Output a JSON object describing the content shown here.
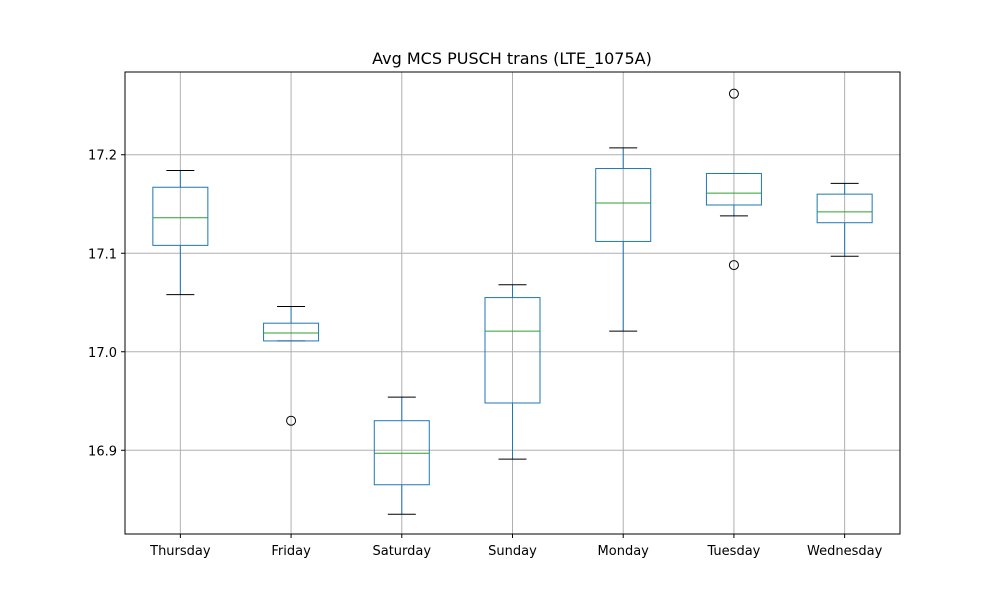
{
  "chart_data": {
    "type": "box",
    "title": "Avg MCS PUSCH trans (LTE_1075A)",
    "xlabel": "",
    "ylabel": "",
    "categories": [
      "Thursday",
      "Friday",
      "Saturday",
      "Sunday",
      "Monday",
      "Tuesday",
      "Wednesday"
    ],
    "ylim": [
      16.815,
      17.284
    ],
    "yticks": [
      16.9,
      17.0,
      17.1,
      17.2
    ],
    "ytick_labels": [
      "16.9",
      "17.0",
      "17.1",
      "17.2"
    ],
    "grid": true,
    "boxes": [
      {
        "category": "Thursday",
        "whisker_low": 17.058,
        "q1": 17.108,
        "median": 17.136,
        "q3": 17.167,
        "whisker_high": 17.184,
        "outliers": []
      },
      {
        "category": "Friday",
        "whisker_low": 17.011,
        "q1": 17.011,
        "median": 17.019,
        "q3": 17.029,
        "whisker_high": 17.046,
        "outliers": [
          16.93
        ]
      },
      {
        "category": "Saturday",
        "whisker_low": 16.835,
        "q1": 16.865,
        "median": 16.897,
        "q3": 16.93,
        "whisker_high": 16.954,
        "outliers": []
      },
      {
        "category": "Sunday",
        "whisker_low": 16.891,
        "q1": 16.948,
        "median": 17.021,
        "q3": 17.055,
        "whisker_high": 17.068,
        "outliers": []
      },
      {
        "category": "Monday",
        "whisker_low": 17.021,
        "q1": 17.112,
        "median": 17.151,
        "q3": 17.186,
        "whisker_high": 17.207,
        "outliers": []
      },
      {
        "category": "Tuesday",
        "whisker_low": 17.138,
        "q1": 17.149,
        "median": 17.161,
        "q3": 17.181,
        "whisker_high": 17.181,
        "outliers": [
          17.088,
          17.262
        ]
      },
      {
        "category": "Wednesday",
        "whisker_low": 17.097,
        "q1": 17.131,
        "median": 17.142,
        "q3": 17.16,
        "whisker_high": 17.171,
        "outliers": []
      }
    ],
    "colors": {
      "box": "#1f77b4",
      "median": "#2ca02c",
      "whisker_cap": "#000000",
      "grid": "#b0b0b0"
    }
  }
}
